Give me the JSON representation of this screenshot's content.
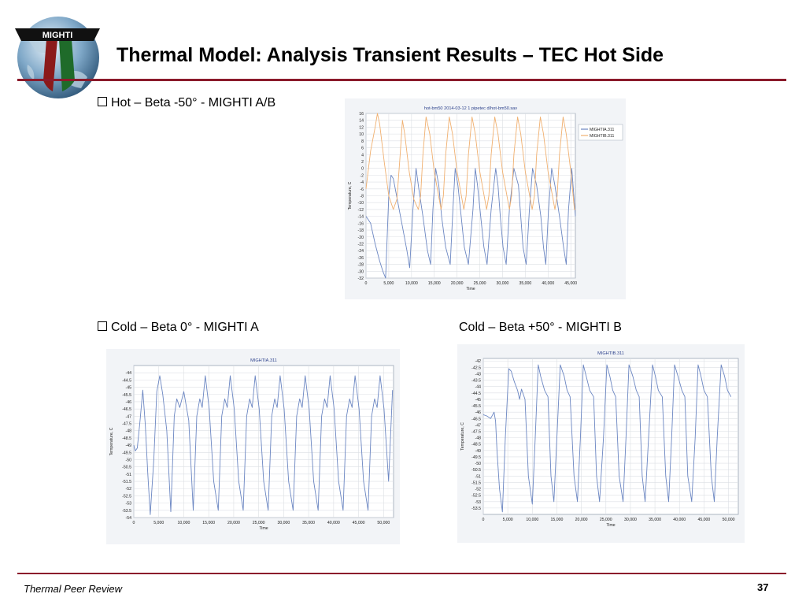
{
  "slide": {
    "title": "Thermal Model:  Analysis Transient Results – TEC Hot Side",
    "logo_text": "MIGHTI",
    "footer": "Thermal Peer Review",
    "page_number": "37",
    "accent_color": "#8b1a2b"
  },
  "bullets": [
    "Hot – Beta -50° - MIGHTI A/B",
    "Cold – Beta 0° - MIGHTI A",
    "Cold – Beta +50° - MIGHTI B"
  ],
  "chart_data": [
    {
      "type": "line",
      "title": "hot-bm50 2014-03-12 1 pipetec d/hot-bm50.sav",
      "xlabel": "Time",
      "ylabel": "Temperature, C",
      "xlim": [
        0,
        46000
      ],
      "ylim": [
        -32,
        16
      ],
      "xticks": [
        0,
        5000,
        10000,
        15000,
        20000,
        25000,
        30000,
        35000,
        40000,
        45000
      ],
      "xtick_labels": [
        "0",
        "5,000",
        "10,000",
        "15,000",
        "20,000",
        "25,000",
        "30,000",
        "35,000",
        "40,000",
        "45,000"
      ],
      "yticks": [
        -32,
        -30,
        -28,
        -26,
        -24,
        -22,
        -20,
        -18,
        -16,
        -14,
        -12,
        -10,
        -8,
        -6,
        -4,
        -2,
        0,
        2,
        4,
        6,
        8,
        10,
        12,
        14,
        16
      ],
      "ytick_labels": [
        "-32",
        "-30",
        "-28",
        "-26",
        "-24",
        "-22",
        "-20",
        "-18",
        "-16",
        "-14",
        "-12",
        "-10",
        "-8",
        "-6",
        "-4",
        "-2",
        "0",
        "2",
        "4",
        "6",
        "8",
        "10",
        "12",
        "14",
        "16"
      ],
      "grid": true,
      "legend": "top-right",
      "series": [
        {
          "name": "MIGHTIA.311",
          "color": "#6b86c2",
          "x": [
            0,
            1000,
            2000,
            3000,
            3700,
            4300,
            5000,
            5500,
            6000,
            7000,
            8000,
            9000,
            9600,
            10300,
            11000,
            11600,
            12500,
            13500,
            14200,
            14700,
            15300,
            16000,
            16600,
            17500,
            18500,
            19100,
            19600,
            20200,
            20900,
            21600,
            22500,
            23500,
            24000,
            24500,
            25200,
            25900,
            26600,
            27500,
            28500,
            29000,
            29500,
            30100,
            30800,
            31500,
            32500,
            33500,
            34000,
            34500,
            35200,
            35900,
            36600,
            37500,
            38400,
            39000,
            39500,
            40100,
            40800,
            41500,
            42500,
            43400,
            44000,
            44500,
            45200,
            46000
          ],
          "y": [
            -14,
            -16,
            -22,
            -27,
            -30,
            -32,
            -8,
            -2,
            -3,
            -10,
            -17,
            -24,
            -29,
            -12,
            0,
            -6,
            -14,
            -24,
            -28,
            -12,
            0,
            -5,
            -14,
            -23,
            -28,
            -12,
            0,
            -5,
            -14,
            -23,
            -28,
            -12,
            0,
            -5,
            -14,
            -23,
            -28,
            -12,
            0,
            -5,
            -14,
            -23,
            -28,
            -12,
            0,
            -5,
            -14,
            -23,
            -28,
            -12,
            0,
            -5,
            -14,
            -23,
            -28,
            -12,
            0,
            -5,
            -14,
            -23,
            -28,
            -12,
            0,
            -14
          ]
        },
        {
          "name": "MIGHTIB.311",
          "color": "#f0b070",
          "x": [
            0,
            1000,
            2000,
            2500,
            3000,
            4000,
            5000,
            6000,
            6800,
            7500,
            8000,
            8500,
            9500,
            10500,
            11500,
            12000,
            12500,
            13200,
            14000,
            15000,
            16500,
            17000,
            17500,
            18300,
            19000,
            20000,
            21500,
            22000,
            22500,
            23300,
            24000,
            25000,
            26500,
            27000,
            27500,
            28300,
            29000,
            30000,
            31500,
            32000,
            32500,
            33300,
            34000,
            35000,
            36500,
            37000,
            37500,
            38300,
            39000,
            40000,
            41500,
            42000,
            42500,
            43300,
            44000,
            45000,
            45800,
            46000
          ],
          "y": [
            -6,
            5,
            12,
            16,
            13,
            2,
            -8,
            -12,
            -9,
            4,
            14,
            10,
            -1,
            -9,
            -12,
            -8,
            4,
            15,
            10,
            -1,
            -12,
            -8,
            4,
            15,
            10,
            -1,
            -12,
            -8,
            4,
            15,
            10,
            -1,
            -12,
            -8,
            4,
            15,
            10,
            -1,
            -12,
            -8,
            4,
            15,
            10,
            -1,
            -12,
            -8,
            4,
            15,
            10,
            -1,
            -12,
            -8,
            4,
            15,
            10,
            -1,
            -12,
            -12
          ]
        }
      ]
    },
    {
      "type": "line",
      "title": "MIGHTIA.311",
      "xlabel": "Time",
      "ylabel": "Temperature, C",
      "xlim": [
        0,
        52000
      ],
      "ylim": [
        -54,
        -43.5
      ],
      "xticks": [
        0,
        5000,
        10000,
        15000,
        20000,
        25000,
        30000,
        35000,
        40000,
        45000,
        50000
      ],
      "xtick_labels": [
        "0",
        "5,000",
        "10,000",
        "15,000",
        "20,000",
        "25,000",
        "30,000",
        "35,000",
        "40,000",
        "45,000",
        "50,000"
      ],
      "yticks": [
        -54,
        -53.5,
        -53,
        -52.5,
        -52,
        -51.5,
        -51,
        -50.5,
        -50,
        -49.5,
        -49,
        -48.5,
        -48,
        -47.5,
        -47,
        -46.5,
        -46,
        -45.5,
        -45,
        -44.5,
        -44
      ],
      "ytick_labels": [
        "-54",
        "-53.5",
        "-53",
        "-52.5",
        "-52",
        "-51.5",
        "-51",
        "-50.5",
        "-50",
        "-49.5",
        "-49",
        "-48.5",
        "-48",
        "-47.5",
        "-47",
        "-46.5",
        "-46",
        "-45.5",
        "-45",
        "-44.5",
        "-44"
      ],
      "grid": true,
      "series": [
        {
          "name": "MIGHTIA.311",
          "color": "#6b86c2",
          "x": [
            0,
            300,
            700,
            1200,
            1800,
            2300,
            2800,
            3300,
            4000,
            4600,
            5200,
            5800,
            6600,
            7400,
            8100,
            8600,
            9200,
            10000,
            11000,
            11900,
            12600,
            13200,
            13700,
            14300,
            15100,
            16000,
            16900,
            17600,
            18200,
            18700,
            19300,
            20100,
            21000,
            21900,
            22600,
            23200,
            23700,
            24300,
            25100,
            26000,
            26900,
            27600,
            28200,
            28700,
            29300,
            30100,
            31000,
            31900,
            32600,
            33200,
            33700,
            34300,
            35100,
            36000,
            36900,
            37600,
            38200,
            38700,
            39300,
            40100,
            41000,
            41900,
            42600,
            43200,
            43700,
            44300,
            45100,
            46000,
            46900,
            47600,
            48200,
            48700,
            49300,
            50100,
            51000,
            51800
          ],
          "y": [
            -49,
            -49.4,
            -49.2,
            -47.5,
            -45.2,
            -47.6,
            -51,
            -53.8,
            -50,
            -45.3,
            -44.2,
            -45.5,
            -48,
            -53.6,
            -47,
            -45.8,
            -46.4,
            -45.3,
            -47.3,
            -53.5,
            -47,
            -45.8,
            -46.4,
            -44.2,
            -46.5,
            -51.5,
            -53.5,
            -47,
            -45.8,
            -46.4,
            -44.2,
            -46.5,
            -51.5,
            -53.5,
            -47,
            -45.8,
            -46.4,
            -44.2,
            -46.5,
            -51.5,
            -53.5,
            -47,
            -45.8,
            -46.4,
            -44.2,
            -46.5,
            -51.5,
            -53.5,
            -47,
            -45.8,
            -46.4,
            -44.2,
            -46.5,
            -51.5,
            -53.5,
            -47,
            -45.8,
            -46.4,
            -44.2,
            -46.5,
            -51.5,
            -53.5,
            -47,
            -45.8,
            -46.4,
            -44.2,
            -46.5,
            -51.5,
            -53.5,
            -47,
            -45.8,
            -46.4,
            -44.2,
            -46.5,
            -51.5,
            -45.2
          ]
        }
      ]
    },
    {
      "type": "line",
      "title": "MIGHTIB.311",
      "xlabel": "Time",
      "ylabel": "Temperature, C",
      "xlim": [
        0,
        52000
      ],
      "ylim": [
        -54,
        -41.8
      ],
      "xticks": [
        0,
        5000,
        10000,
        15000,
        20000,
        25000,
        30000,
        35000,
        40000,
        45000,
        50000
      ],
      "xtick_labels": [
        "0",
        "5,000",
        "10,000",
        "15,000",
        "20,000",
        "25,000",
        "30,000",
        "35,000",
        "40,000",
        "45,000",
        "50,000"
      ],
      "yticks": [
        -53.5,
        -53,
        -52.5,
        -52,
        -51.5,
        -51,
        -50.5,
        -50,
        -49.5,
        -49,
        -48.5,
        -48,
        -47.5,
        -47,
        -46.5,
        -46,
        -45.5,
        -45,
        -44.5,
        -44,
        -43.5,
        -43,
        -42.5,
        -42
      ],
      "ytick_labels": [
        "-53.5",
        "-53",
        "-52.5",
        "-52",
        "-51.5",
        "-51",
        "-50.5",
        "-50",
        "-49.5",
        "-49",
        "-48.5",
        "-48",
        "-47.5",
        "-47",
        "-46.5",
        "-46",
        "-45.5",
        "-45",
        "-44.5",
        "-44",
        "-43.5",
        "-43",
        "-42.5",
        "-42"
      ],
      "grid": true,
      "series": [
        {
          "name": "MIGHTIB.311",
          "color": "#6b86c2",
          "x": [
            0,
            700,
            1500,
            2200,
            2500,
            2800,
            3300,
            3900,
            4500,
            5200,
            5700,
            6300,
            7000,
            7400,
            7800,
            8500,
            9200,
            10000,
            10600,
            11200,
            11700,
            12500,
            13200,
            13800,
            14400,
            15000,
            15700,
            16500,
            17100,
            17700,
            18500,
            19200,
            19800,
            20400,
            21000,
            21700,
            22500,
            23100,
            23700,
            24500,
            25200,
            25800,
            26400,
            27000,
            27700,
            28500,
            29100,
            29700,
            30500,
            31200,
            31800,
            32400,
            33000,
            33700,
            34500,
            35100,
            35700,
            36500,
            37200,
            37800,
            38400,
            39000,
            39700,
            40500,
            41100,
            41700,
            42500,
            43200,
            43800,
            44400,
            45000,
            45700,
            46500,
            47100,
            47700,
            48500,
            49200,
            49800,
            50500
          ],
          "y": [
            -46.2,
            -46.3,
            -46.5,
            -46,
            -46.7,
            -49,
            -52,
            -53.8,
            -48,
            -42.6,
            -42.8,
            -43.6,
            -44.3,
            -45,
            -44.2,
            -45,
            -51,
            -53.2,
            -48,
            -42.3,
            -43.2,
            -44.3,
            -44.8,
            -51,
            -53,
            -48,
            -42.3,
            -43.2,
            -44.3,
            -44.8,
            -51,
            -53,
            -48,
            -42.3,
            -43.2,
            -44.3,
            -44.8,
            -51,
            -53,
            -48,
            -42.3,
            -43.2,
            -44.3,
            -44.8,
            -51,
            -53,
            -48,
            -42.3,
            -43.2,
            -44.3,
            -44.8,
            -51,
            -53,
            -48,
            -42.3,
            -43.2,
            -44.3,
            -44.8,
            -51,
            -53,
            -48,
            -42.3,
            -43.2,
            -44.3,
            -44.8,
            -51,
            -53,
            -48,
            -42.3,
            -43.2,
            -44.3,
            -44.8,
            -51,
            -53,
            -48,
            -42.3,
            -43.2,
            -44.3,
            -44.8
          ]
        }
      ]
    }
  ]
}
